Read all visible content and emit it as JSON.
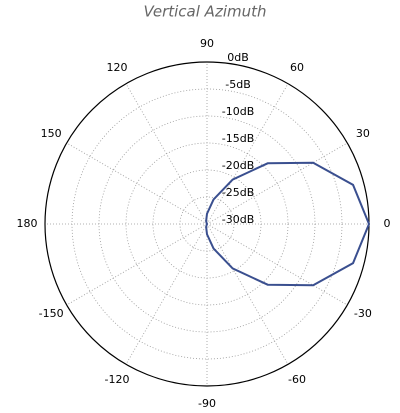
{
  "chart_data": {
    "type": "polar",
    "title": "Vertical Azimuth",
    "rlim": [
      -30,
      0
    ],
    "rticks": [
      {
        "value": 0,
        "label": "0dB"
      },
      {
        "value": -5,
        "label": "-5dB"
      },
      {
        "value": -10,
        "label": "-10dB"
      },
      {
        "value": -15,
        "label": "-15dB"
      },
      {
        "value": -20,
        "label": "-20dB"
      },
      {
        "value": -25,
        "label": "-25dB"
      },
      {
        "value": -30,
        "label": "-30dB"
      }
    ],
    "thetaticks": [
      0,
      30,
      60,
      90,
      120,
      150,
      180,
      -150,
      -120,
      -90,
      -60,
      -30
    ],
    "grid": true,
    "series": [
      {
        "color": "#3a4f8f",
        "x": [
          0,
          15,
          30,
          45,
          60,
          75,
          90,
          105,
          120,
          135,
          150,
          165,
          180,
          195,
          210,
          225,
          240,
          255,
          270,
          285,
          300,
          315,
          330,
          345
        ],
        "values": [
          0,
          -2.0,
          -7.3,
          -14.1,
          -20.5,
          -25.3,
          -28.1,
          -29.4,
          -29.9,
          -30,
          -30,
          -30,
          -30,
          -30,
          -30,
          -30,
          -29.9,
          -29.4,
          -28.1,
          -25.3,
          -20.5,
          -14.1,
          -7.3,
          -2.0
        ]
      }
    ]
  }
}
